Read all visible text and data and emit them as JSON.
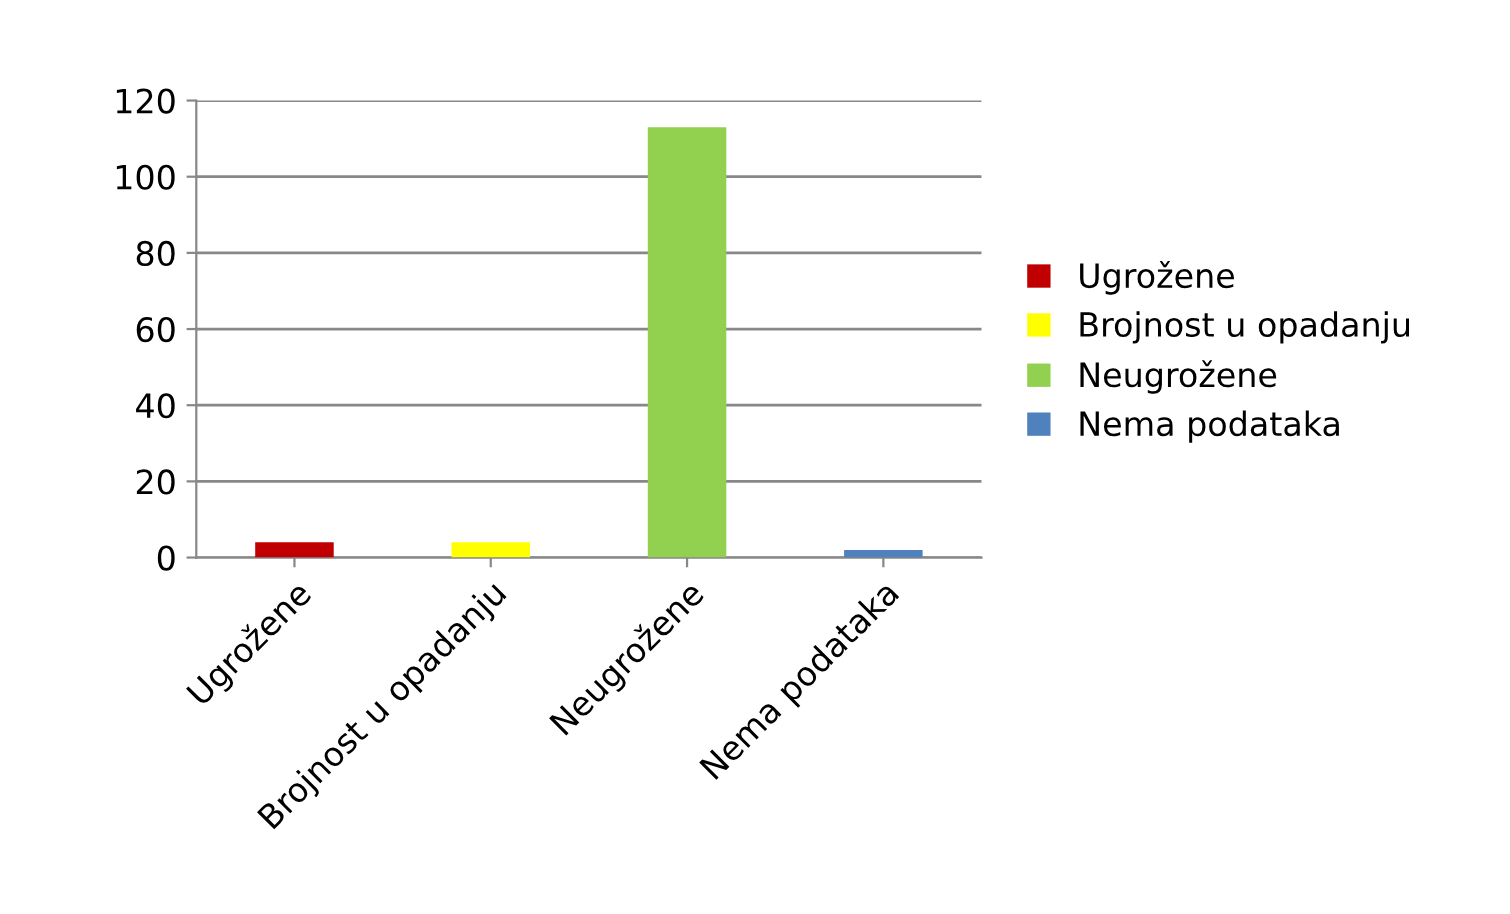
{
  "chart_data": {
    "type": "bar",
    "categories": [
      "Ugrožene",
      "Brojnost u opadanju",
      "Neugrožene",
      "Nema podataka"
    ],
    "series": [
      {
        "name": "Ugrožene",
        "color": "#c00000",
        "values": [
          4,
          null,
          null,
          null
        ]
      },
      {
        "name": "Brojnost u opadanju",
        "color": "#ffff00",
        "values": [
          null,
          4,
          null,
          null
        ]
      },
      {
        "name": "Neugrožene",
        "color": "#92d050",
        "values": [
          null,
          null,
          113,
          null
        ]
      },
      {
        "name": "Nema podataka",
        "color": "#4f81bd",
        "values": [
          null,
          null,
          null,
          2
        ]
      }
    ],
    "ylim": [
      0,
      120
    ],
    "yticks": [
      0,
      20,
      40,
      60,
      80,
      100,
      120
    ],
    "grid": "y",
    "legend": "right"
  }
}
